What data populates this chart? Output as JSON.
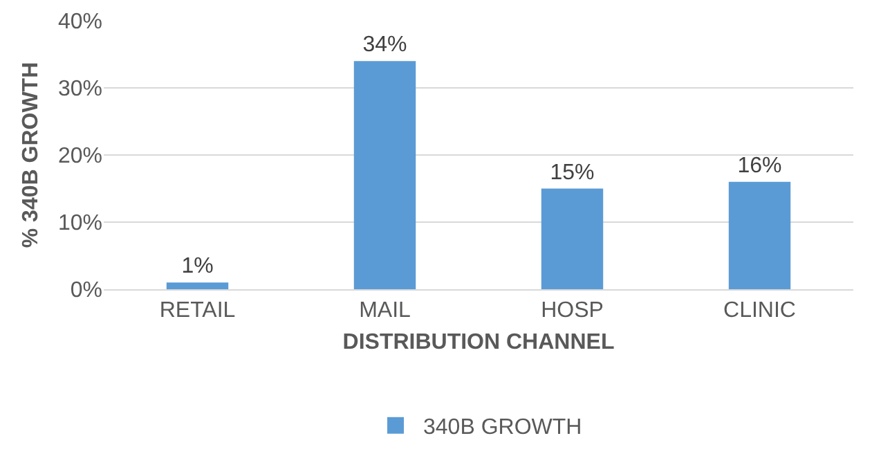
{
  "chart_data": {
    "type": "bar",
    "xlabel": "DISTRIBUTION CHANNEL",
    "ylabel": "% 340B GROWTH",
    "categories": [
      "RETAIL",
      "MAIL",
      "HOSP",
      "CLINIC"
    ],
    "series": [
      {
        "name": "340B GROWTH",
        "color": "#5b9bd5",
        "values": [
          1,
          34,
          15,
          16
        ],
        "value_labels": [
          "1%",
          "34%",
          "15%",
          "16%"
        ]
      }
    ],
    "ylim": [
      0,
      40
    ],
    "yticks": [
      {
        "value": 0,
        "label": "0%"
      },
      {
        "value": 10,
        "label": "10%"
      },
      {
        "value": 20,
        "label": "20%"
      },
      {
        "value": 30,
        "label": "30%"
      },
      {
        "value": 40,
        "label": "40%"
      }
    ],
    "grid": "y",
    "legend": "bottom"
  }
}
